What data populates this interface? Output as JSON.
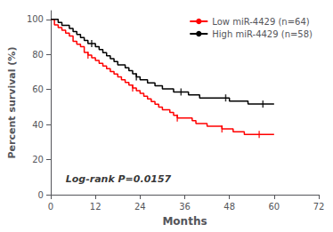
{
  "chart_data": {
    "type": "step",
    "xlabel": "Months",
    "ylabel": "Percent survival (%)",
    "xlim": [
      0,
      72
    ],
    "ylim": [
      0,
      105
    ],
    "xticks": [
      0,
      12,
      24,
      36,
      48,
      60,
      72
    ],
    "yticks": [
      0,
      20,
      40,
      60,
      80,
      100
    ],
    "grid": false,
    "legend": "upper right",
    "x": [
      0,
      1,
      2,
      3,
      4,
      5,
      6,
      7,
      8,
      9,
      10,
      11,
      12,
      13,
      14,
      15,
      16,
      17,
      18,
      19,
      20,
      21,
      22,
      23,
      24,
      25,
      26,
      27,
      28,
      29,
      30,
      31,
      32,
      33,
      34,
      35,
      36,
      37,
      38,
      39,
      40,
      41,
      42,
      43,
      44,
      45,
      46,
      47,
      48,
      49,
      50,
      51,
      52,
      53,
      54,
      55,
      56,
      57,
      58,
      59,
      60
    ],
    "series": [
      {
        "name": "Low miR-4429 (n=64)",
        "color": "#FF0000",
        "values": [
          100,
          96.9,
          95.3,
          93.8,
          92.2,
          90.6,
          87.5,
          85.9,
          84.4,
          81.2,
          79.7,
          78.1,
          76.6,
          75.0,
          73.4,
          71.9,
          70.3,
          68.8,
          67.2,
          65.6,
          64.1,
          62.5,
          60.9,
          59.4,
          57.8,
          56.2,
          54.7,
          53.1,
          51.6,
          50.0,
          48.4,
          48.4,
          46.9,
          45.3,
          43.8,
          43.8,
          43.8,
          43.8,
          42.2,
          40.6,
          40.6,
          40.6,
          39.1,
          39.1,
          39.1,
          39.1,
          37.5,
          37.5,
          37.5,
          35.9,
          35.9,
          35.9,
          34.4,
          34.4,
          34.4,
          34.4,
          34.4,
          34.4,
          34.4,
          34.4,
          34.4
        ],
        "censor_x": [
          10,
          22,
          34,
          46,
          56
        ],
        "censor_y": [
          79.7,
          60.9,
          43.8,
          37.5,
          34.4
        ]
      },
      {
        "name": "High miR-4429 (n=58)",
        "color": "#000000",
        "values": [
          100,
          100,
          98.3,
          96.6,
          96.6,
          94.8,
          93.1,
          91.4,
          89.7,
          88.0,
          86.2,
          86.2,
          84.5,
          82.8,
          81.0,
          79.3,
          77.6,
          75.9,
          74.1,
          74.1,
          72.4,
          70.7,
          69.0,
          67.2,
          65.5,
          65.5,
          63.8,
          63.8,
          62.1,
          62.1,
          60.3,
          60.3,
          60.3,
          58.6,
          58.6,
          58.6,
          58.6,
          56.9,
          56.9,
          56.9,
          55.2,
          55.2,
          55.2,
          55.2,
          55.2,
          55.2,
          55.2,
          55.2,
          53.4,
          53.4,
          53.4,
          53.4,
          53.4,
          51.7,
          51.7,
          51.7,
          51.7,
          51.7,
          51.7,
          51.7,
          51.7
        ],
        "censor_x": [
          11,
          23,
          35,
          47,
          57
        ],
        "censor_y": [
          86.2,
          67.2,
          58.6,
          55.2,
          51.7
        ]
      }
    ],
    "annotations": [
      {
        "text": "Log-rank P=0.0157",
        "x": 4,
        "y": 9
      }
    ]
  }
}
